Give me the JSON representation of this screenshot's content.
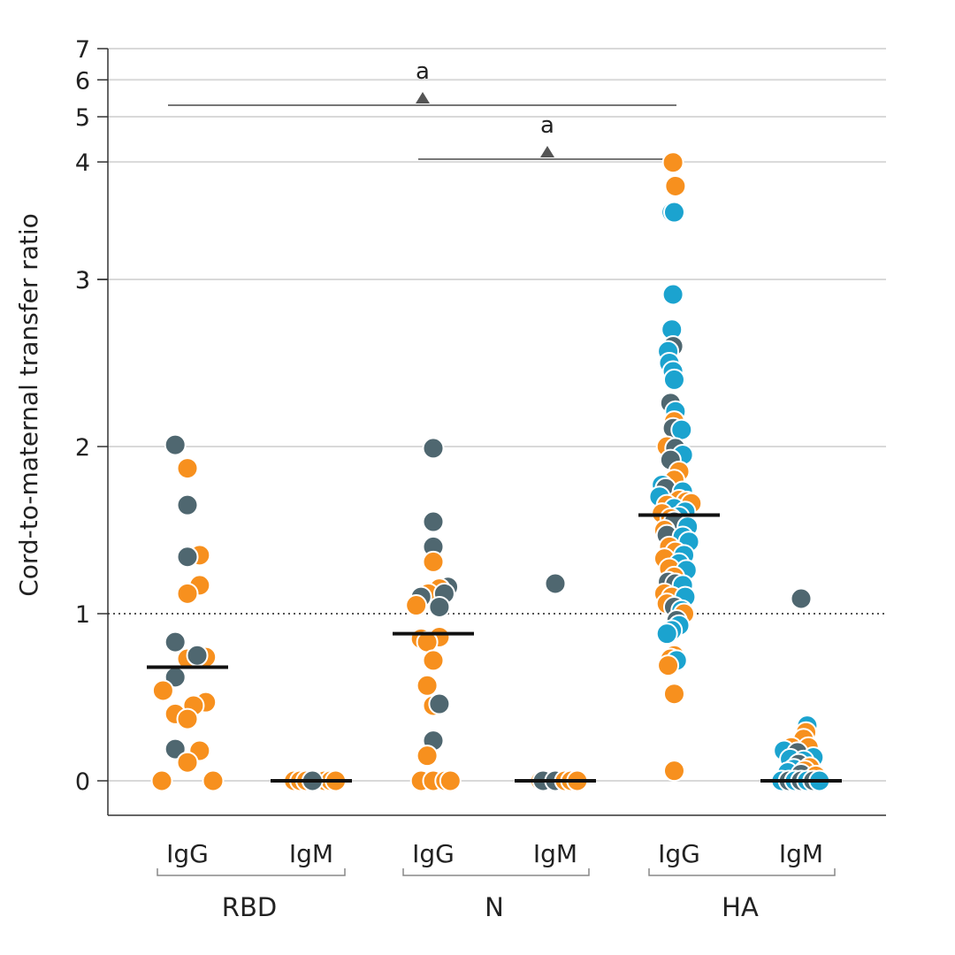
{
  "chart_data": {
    "type": "scatter",
    "title": "",
    "ylabel": "Cord-to-maternal transfer ratio",
    "xlabel": "",
    "y_axis_note": "broken axis: lower segment 0–3, upper segment 3–7",
    "y_ticks_lower": [
      "0",
      "1",
      "2",
      "3"
    ],
    "y_ticks_upper": [
      "3",
      "4",
      "5",
      "6",
      "7"
    ],
    "reference_line": {
      "y": 1,
      "style": "dotted"
    },
    "groups": [
      {
        "name": "RBD",
        "categories": [
          "IgG",
          "IgM"
        ]
      },
      {
        "name": "N",
        "categories": [
          "IgG",
          "IgM"
        ]
      },
      {
        "name": "HA",
        "categories": [
          "IgG",
          "IgM"
        ]
      }
    ],
    "colors": {
      "orange": "#f7901e",
      "gray": "#4f6770",
      "blue": "#1ba3cf",
      "median": "#111111",
      "grid": "#d9d9d9"
    },
    "medians": [
      {
        "group": "RBD",
        "category": "IgG",
        "y": 0.68
      },
      {
        "group": "RBD",
        "category": "IgM",
        "y": 0.0
      },
      {
        "group": "N",
        "category": "IgG",
        "y": 0.88
      },
      {
        "group": "N",
        "category": "IgM",
        "y": 0.0
      },
      {
        "group": "HA",
        "category": "IgG",
        "y": 1.59
      },
      {
        "group": "HA",
        "category": "IgM",
        "y": 0.0
      }
    ],
    "significance": [
      {
        "label": "a",
        "from": "RBD IgG",
        "to": "HA IgG"
      },
      {
        "label": "a",
        "from": "N IgG",
        "to": "HA IgG"
      }
    ],
    "points": [
      {
        "cat": 0,
        "dx": -0.1,
        "y": 2.01,
        "c": "gray"
      },
      {
        "cat": 0,
        "dx": 0.0,
        "y": 1.87,
        "c": "orange"
      },
      {
        "cat": 0,
        "dx": 0.0,
        "y": 1.65,
        "c": "gray"
      },
      {
        "cat": 0,
        "dx": 0.1,
        "y": 1.35,
        "c": "orange"
      },
      {
        "cat": 0,
        "dx": 0.0,
        "y": 1.34,
        "c": "gray"
      },
      {
        "cat": 0,
        "dx": 0.1,
        "y": 1.17,
        "c": "orange"
      },
      {
        "cat": 0,
        "dx": 0.0,
        "y": 1.12,
        "c": "orange"
      },
      {
        "cat": 0,
        "dx": -0.1,
        "y": 0.83,
        "c": "gray"
      },
      {
        "cat": 0,
        "dx": 0.15,
        "y": 0.74,
        "c": "orange"
      },
      {
        "cat": 0,
        "dx": 0.0,
        "y": 0.73,
        "c": "orange"
      },
      {
        "cat": 0,
        "dx": 0.08,
        "y": 0.75,
        "c": "gray"
      },
      {
        "cat": 0,
        "dx": -0.1,
        "y": 0.62,
        "c": "gray"
      },
      {
        "cat": 0,
        "dx": -0.2,
        "y": 0.54,
        "c": "orange"
      },
      {
        "cat": 0,
        "dx": 0.15,
        "y": 0.47,
        "c": "orange"
      },
      {
        "cat": 0,
        "dx": 0.05,
        "y": 0.45,
        "c": "orange"
      },
      {
        "cat": 0,
        "dx": -0.1,
        "y": 0.4,
        "c": "orange"
      },
      {
        "cat": 0,
        "dx": 0.0,
        "y": 0.37,
        "c": "orange"
      },
      {
        "cat": 0,
        "dx": -0.1,
        "y": 0.19,
        "c": "gray"
      },
      {
        "cat": 0,
        "dx": 0.1,
        "y": 0.18,
        "c": "orange"
      },
      {
        "cat": 0,
        "dx": 0.0,
        "y": 0.11,
        "c": "orange"
      },
      {
        "cat": 0,
        "dx": -0.21,
        "y": 0.0,
        "c": "orange"
      },
      {
        "cat": 0,
        "dx": 0.21,
        "y": 0.0,
        "c": "orange"
      },
      {
        "cat": 1,
        "dx": -0.14,
        "y": 0.0,
        "c": "orange"
      },
      {
        "cat": 1,
        "dx": -0.09,
        "y": 0.0,
        "c": "orange"
      },
      {
        "cat": 1,
        "dx": -0.04,
        "y": 0.0,
        "c": "orange"
      },
      {
        "cat": 1,
        "dx": 0.06,
        "y": 0.0,
        "c": "gray"
      },
      {
        "cat": 1,
        "dx": 0.11,
        "y": 0.0,
        "c": "orange"
      },
      {
        "cat": 1,
        "dx": 0.16,
        "y": 0.0,
        "c": "orange"
      },
      {
        "cat": 1,
        "dx": 0.2,
        "y": 0.0,
        "c": "orange"
      },
      {
        "cat": 1,
        "dx": 0.01,
        "y": 0.0,
        "c": "gray"
      },
      {
        "cat": 2,
        "dx": 0.0,
        "y": 1.99,
        "c": "gray"
      },
      {
        "cat": 2,
        "dx": 0.0,
        "y": 1.55,
        "c": "gray"
      },
      {
        "cat": 2,
        "dx": 0.0,
        "y": 1.4,
        "c": "gray"
      },
      {
        "cat": 2,
        "dx": 0.0,
        "y": 1.31,
        "c": "orange"
      },
      {
        "cat": 2,
        "dx": 0.12,
        "y": 1.16,
        "c": "gray"
      },
      {
        "cat": 2,
        "dx": 0.05,
        "y": 1.15,
        "c": "orange"
      },
      {
        "cat": 2,
        "dx": -0.04,
        "y": 1.12,
        "c": "orange"
      },
      {
        "cat": 2,
        "dx": 0.09,
        "y": 1.12,
        "c": "gray"
      },
      {
        "cat": 2,
        "dx": -0.1,
        "y": 1.1,
        "c": "gray"
      },
      {
        "cat": 2,
        "dx": -0.14,
        "y": 1.05,
        "c": "orange"
      },
      {
        "cat": 2,
        "dx": 0.05,
        "y": 1.04,
        "c": "gray"
      },
      {
        "cat": 2,
        "dx": 0.05,
        "y": 0.86,
        "c": "orange"
      },
      {
        "cat": 2,
        "dx": -0.1,
        "y": 0.85,
        "c": "orange"
      },
      {
        "cat": 2,
        "dx": -0.05,
        "y": 0.83,
        "c": "orange"
      },
      {
        "cat": 2,
        "dx": 0.0,
        "y": 0.72,
        "c": "orange"
      },
      {
        "cat": 2,
        "dx": -0.05,
        "y": 0.57,
        "c": "orange"
      },
      {
        "cat": 2,
        "dx": 0.0,
        "y": 0.45,
        "c": "orange"
      },
      {
        "cat": 2,
        "dx": 0.05,
        "y": 0.46,
        "c": "gray"
      },
      {
        "cat": 2,
        "dx": 0.0,
        "y": 0.24,
        "c": "gray"
      },
      {
        "cat": 2,
        "dx": -0.05,
        "y": 0.15,
        "c": "orange"
      },
      {
        "cat": 2,
        "dx": -0.1,
        "y": 0.0,
        "c": "orange"
      },
      {
        "cat": 2,
        "dx": 0.0,
        "y": 0.0,
        "c": "orange"
      },
      {
        "cat": 2,
        "dx": 0.1,
        "y": 0.0,
        "c": "orange"
      },
      {
        "cat": 2,
        "dx": 0.14,
        "y": 0.0,
        "c": "orange"
      },
      {
        "cat": 3,
        "dx": 0.0,
        "y": 1.18,
        "c": "gray"
      },
      {
        "cat": 3,
        "dx": -0.12,
        "y": 0.0,
        "c": "orange"
      },
      {
        "cat": 3,
        "dx": -0.1,
        "y": 0.0,
        "c": "gray"
      },
      {
        "cat": 3,
        "dx": 0.0,
        "y": 0.0,
        "c": "gray"
      },
      {
        "cat": 3,
        "dx": 0.08,
        "y": 0.0,
        "c": "orange"
      },
      {
        "cat": 3,
        "dx": 0.13,
        "y": 0.0,
        "c": "orange"
      },
      {
        "cat": 3,
        "dx": 0.18,
        "y": 0.0,
        "c": "orange"
      },
      {
        "cat": 4,
        "dx": -0.05,
        "y": 3.99,
        "c": "orange"
      },
      {
        "cat": 4,
        "dx": -0.03,
        "y": 3.55,
        "c": "orange"
      },
      {
        "cat": 4,
        "dx": -0.06,
        "y": 3.12,
        "c": "blue"
      },
      {
        "cat": 4,
        "dx": -0.04,
        "y": 3.12,
        "c": "blue"
      },
      {
        "cat": 4,
        "dx": -0.05,
        "y": 2.91,
        "c": "blue"
      },
      {
        "cat": 4,
        "dx": -0.06,
        "y": 2.7,
        "c": "blue"
      },
      {
        "cat": 4,
        "dx": -0.05,
        "y": 2.6,
        "c": "gray"
      },
      {
        "cat": 4,
        "dx": -0.09,
        "y": 2.57,
        "c": "blue"
      },
      {
        "cat": 4,
        "dx": -0.08,
        "y": 2.5,
        "c": "blue"
      },
      {
        "cat": 4,
        "dx": -0.05,
        "y": 2.45,
        "c": "blue"
      },
      {
        "cat": 4,
        "dx": -0.04,
        "y": 2.4,
        "c": "blue"
      },
      {
        "cat": 4,
        "dx": -0.07,
        "y": 2.26,
        "c": "gray"
      },
      {
        "cat": 4,
        "dx": -0.03,
        "y": 2.21,
        "c": "blue"
      },
      {
        "cat": 4,
        "dx": -0.04,
        "y": 2.15,
        "c": "orange"
      },
      {
        "cat": 4,
        "dx": -0.05,
        "y": 2.11,
        "c": "gray"
      },
      {
        "cat": 4,
        "dx": 0.02,
        "y": 2.1,
        "c": "blue"
      },
      {
        "cat": 4,
        "dx": -0.1,
        "y": 2.0,
        "c": "orange"
      },
      {
        "cat": 4,
        "dx": -0.03,
        "y": 1.99,
        "c": "gray"
      },
      {
        "cat": 4,
        "dx": 0.03,
        "y": 1.95,
        "c": "blue"
      },
      {
        "cat": 4,
        "dx": -0.07,
        "y": 1.92,
        "c": "gray"
      },
      {
        "cat": 4,
        "dx": 0.0,
        "y": 1.85,
        "c": "orange"
      },
      {
        "cat": 4,
        "dx": -0.04,
        "y": 1.8,
        "c": "orange"
      },
      {
        "cat": 4,
        "dx": -0.14,
        "y": 1.77,
        "c": "blue"
      },
      {
        "cat": 4,
        "dx": -0.11,
        "y": 1.75,
        "c": "gray"
      },
      {
        "cat": 4,
        "dx": 0.03,
        "y": 1.73,
        "c": "blue"
      },
      {
        "cat": 4,
        "dx": -0.16,
        "y": 1.7,
        "c": "blue"
      },
      {
        "cat": 4,
        "dx": 0.0,
        "y": 1.68,
        "c": "orange"
      },
      {
        "cat": 4,
        "dx": 0.06,
        "y": 1.67,
        "c": "orange"
      },
      {
        "cat": 4,
        "dx": 0.1,
        "y": 1.66,
        "c": "orange"
      },
      {
        "cat": 4,
        "dx": -0.1,
        "y": 1.65,
        "c": "orange"
      },
      {
        "cat": 4,
        "dx": -0.04,
        "y": 1.63,
        "c": "blue"
      },
      {
        "cat": 4,
        "dx": 0.05,
        "y": 1.61,
        "c": "blue"
      },
      {
        "cat": 4,
        "dx": -0.14,
        "y": 1.6,
        "c": "orange"
      },
      {
        "cat": 4,
        "dx": 0.0,
        "y": 1.58,
        "c": "blue"
      },
      {
        "cat": 4,
        "dx": -0.07,
        "y": 1.57,
        "c": "orange"
      },
      {
        "cat": 4,
        "dx": -0.04,
        "y": 1.55,
        "c": "gray"
      },
      {
        "cat": 4,
        "dx": 0.07,
        "y": 1.52,
        "c": "blue"
      },
      {
        "cat": 4,
        "dx": -0.12,
        "y": 1.5,
        "c": "orange"
      },
      {
        "cat": 4,
        "dx": -0.1,
        "y": 1.47,
        "c": "gray"
      },
      {
        "cat": 4,
        "dx": 0.03,
        "y": 1.46,
        "c": "blue"
      },
      {
        "cat": 4,
        "dx": 0.08,
        "y": 1.43,
        "c": "blue"
      },
      {
        "cat": 4,
        "dx": -0.08,
        "y": 1.4,
        "c": "orange"
      },
      {
        "cat": 4,
        "dx": -0.03,
        "y": 1.37,
        "c": "orange"
      },
      {
        "cat": 4,
        "dx": 0.04,
        "y": 1.35,
        "c": "blue"
      },
      {
        "cat": 4,
        "dx": -0.12,
        "y": 1.33,
        "c": "orange"
      },
      {
        "cat": 4,
        "dx": 0.0,
        "y": 1.3,
        "c": "blue"
      },
      {
        "cat": 4,
        "dx": -0.08,
        "y": 1.27,
        "c": "orange"
      },
      {
        "cat": 4,
        "dx": 0.06,
        "y": 1.26,
        "c": "blue"
      },
      {
        "cat": 4,
        "dx": -0.04,
        "y": 1.22,
        "c": "orange"
      },
      {
        "cat": 4,
        "dx": -0.09,
        "y": 1.19,
        "c": "gray"
      },
      {
        "cat": 4,
        "dx": -0.03,
        "y": 1.18,
        "c": "gray"
      },
      {
        "cat": 4,
        "dx": 0.03,
        "y": 1.17,
        "c": "blue"
      },
      {
        "cat": 4,
        "dx": -0.12,
        "y": 1.12,
        "c": "orange"
      },
      {
        "cat": 4,
        "dx": -0.06,
        "y": 1.1,
        "c": "orange"
      },
      {
        "cat": 4,
        "dx": 0.05,
        "y": 1.1,
        "c": "blue"
      },
      {
        "cat": 4,
        "dx": -0.1,
        "y": 1.06,
        "c": "orange"
      },
      {
        "cat": 4,
        "dx": -0.04,
        "y": 1.04,
        "c": "gray"
      },
      {
        "cat": 4,
        "dx": 0.02,
        "y": 1.02,
        "c": "blue"
      },
      {
        "cat": 4,
        "dx": 0.04,
        "y": 1.0,
        "c": "orange"
      },
      {
        "cat": 4,
        "dx": -0.02,
        "y": 0.96,
        "c": "gray"
      },
      {
        "cat": 4,
        "dx": 0.0,
        "y": 0.93,
        "c": "blue"
      },
      {
        "cat": 4,
        "dx": -0.06,
        "y": 0.9,
        "c": "blue"
      },
      {
        "cat": 4,
        "dx": -0.1,
        "y": 0.88,
        "c": "blue"
      },
      {
        "cat": 4,
        "dx": -0.04,
        "y": 0.75,
        "c": "orange"
      },
      {
        "cat": 4,
        "dx": -0.07,
        "y": 0.73,
        "c": "orange"
      },
      {
        "cat": 4,
        "dx": -0.02,
        "y": 0.72,
        "c": "blue"
      },
      {
        "cat": 4,
        "dx": -0.09,
        "y": 0.69,
        "c": "orange"
      },
      {
        "cat": 4,
        "dx": -0.04,
        "y": 0.52,
        "c": "orange"
      },
      {
        "cat": 4,
        "dx": -0.04,
        "y": 0.06,
        "c": "orange"
      },
      {
        "cat": 5,
        "dx": 0.0,
        "y": 1.09,
        "c": "gray"
      },
      {
        "cat": 5,
        "dx": 0.05,
        "y": 0.33,
        "c": "blue"
      },
      {
        "cat": 5,
        "dx": 0.04,
        "y": 0.29,
        "c": "orange"
      },
      {
        "cat": 5,
        "dx": 0.02,
        "y": 0.25,
        "c": "orange"
      },
      {
        "cat": 5,
        "dx": -0.08,
        "y": 0.2,
        "c": "orange"
      },
      {
        "cat": 5,
        "dx": 0.06,
        "y": 0.2,
        "c": "orange"
      },
      {
        "cat": 5,
        "dx": -0.14,
        "y": 0.18,
        "c": "blue"
      },
      {
        "cat": 5,
        "dx": -0.03,
        "y": 0.17,
        "c": "gray"
      },
      {
        "cat": 5,
        "dx": 0.1,
        "y": 0.14,
        "c": "blue"
      },
      {
        "cat": 5,
        "dx": -0.09,
        "y": 0.13,
        "c": "blue"
      },
      {
        "cat": 5,
        "dx": 0.02,
        "y": 0.12,
        "c": "blue"
      },
      {
        "cat": 5,
        "dx": -0.02,
        "y": 0.1,
        "c": "gray"
      },
      {
        "cat": 5,
        "dx": 0.07,
        "y": 0.08,
        "c": "orange"
      },
      {
        "cat": 5,
        "dx": -0.06,
        "y": 0.07,
        "c": "blue"
      },
      {
        "cat": 5,
        "dx": 0.03,
        "y": 0.06,
        "c": "orange"
      },
      {
        "cat": 5,
        "dx": -0.11,
        "y": 0.05,
        "c": "blue"
      },
      {
        "cat": 5,
        "dx": 0.0,
        "y": 0.04,
        "c": "gray"
      },
      {
        "cat": 5,
        "dx": 0.12,
        "y": 0.03,
        "c": "orange"
      },
      {
        "cat": 5,
        "dx": -0.16,
        "y": 0.0,
        "c": "blue"
      },
      {
        "cat": 5,
        "dx": -0.1,
        "y": 0.0,
        "c": "gray"
      },
      {
        "cat": 5,
        "dx": -0.05,
        "y": 0.0,
        "c": "blue"
      },
      {
        "cat": 5,
        "dx": 0.0,
        "y": 0.0,
        "c": "gray"
      },
      {
        "cat": 5,
        "dx": 0.05,
        "y": 0.0,
        "c": "blue"
      },
      {
        "cat": 5,
        "dx": 0.1,
        "y": 0.0,
        "c": "gray"
      },
      {
        "cat": 5,
        "dx": 0.15,
        "y": 0.0,
        "c": "blue"
      }
    ]
  }
}
